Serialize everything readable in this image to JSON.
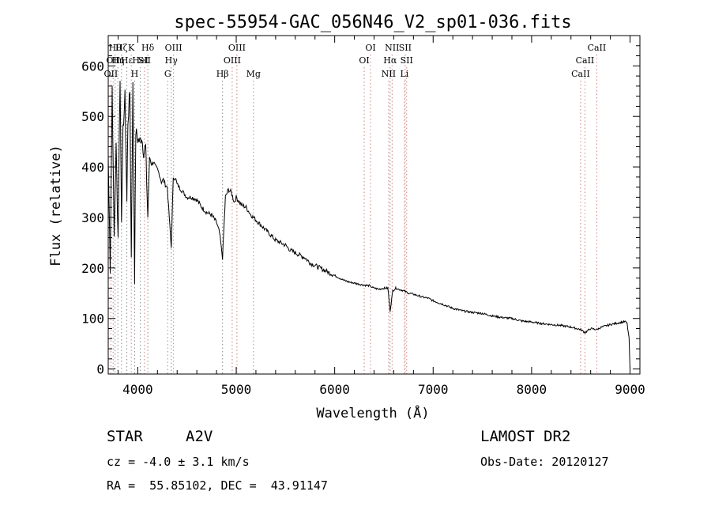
{
  "chart_data": {
    "type": "line",
    "title": "spec-55954-GAC_056N46_V2_sp01-036.fits",
    "xlabel": "Wavelength (Å)",
    "ylabel": "Flux (relative)",
    "xlim": [
      3700,
      9100
    ],
    "ylim": [
      -10,
      660
    ],
    "xticks": [
      4000,
      5000,
      6000,
      7000,
      8000,
      9000
    ],
    "yticks": [
      0,
      100,
      200,
      300,
      400,
      500,
      600
    ],
    "grid": false,
    "series": [
      {
        "x": [
          3700,
          3720,
          3740,
          3760,
          3780,
          3800,
          3820,
          3835,
          3850,
          3870,
          3889,
          3900,
          3920,
          3934,
          3950,
          3968,
          3980,
          4000,
          4020,
          4040,
          4060,
          4080,
          4102,
          4120,
          4140,
          4160,
          4180,
          4200,
          4220,
          4240,
          4260,
          4280,
          4300,
          4320,
          4340,
          4360,
          4380,
          4400,
          4420,
          4440,
          4460,
          4480,
          4500,
          4550,
          4600,
          4650,
          4700,
          4750,
          4800,
          4830,
          4861,
          4890,
          4920,
          4950,
          4980,
          5000,
          5050,
          5100,
          5150,
          5200,
          5250,
          5300,
          5350,
          5400,
          5450,
          5500,
          5550,
          5600,
          5650,
          5700,
          5750,
          5800,
          5850,
          5900,
          5950,
          6000,
          6050,
          6100,
          6150,
          6200,
          6250,
          6300,
          6350,
          6400,
          6450,
          6500,
          6540,
          6563,
          6590,
          6620,
          6650,
          6700,
          6750,
          6800,
          6850,
          6900,
          6950,
          7000,
          7100,
          7200,
          7300,
          7400,
          7500,
          7600,
          7700,
          7800,
          7900,
          8000,
          8100,
          8200,
          8300,
          8400,
          8500,
          8542,
          8600,
          8662,
          8700,
          8750,
          8800,
          8850,
          8900,
          8950,
          8970,
          8990,
          9000
        ],
        "y": [
          420,
          200,
          560,
          260,
          440,
          260,
          580,
          300,
          470,
          540,
          330,
          490,
          550,
          220,
          560,
          180,
          470,
          455,
          450,
          460,
          430,
          440,
          300,
          420,
          405,
          410,
          400,
          395,
          385,
          370,
          375,
          365,
          360,
          300,
          240,
          375,
          380,
          365,
          360,
          355,
          350,
          345,
          340,
          340,
          335,
          320,
          310,
          305,
          290,
          270,
          220,
          340,
          355,
          350,
          330,
          340,
          325,
          320,
          305,
          295,
          285,
          275,
          265,
          255,
          250,
          245,
          235,
          230,
          225,
          220,
          210,
          205,
          200,
          195,
          190,
          185,
          180,
          175,
          172,
          170,
          168,
          166,
          165,
          160,
          158,
          160,
          160,
          115,
          155,
          160,
          158,
          155,
          150,
          148,
          145,
          142,
          140,
          135,
          128,
          120,
          115,
          112,
          110,
          105,
          102,
          100,
          95,
          93,
          90,
          88,
          86,
          83,
          78,
          72,
          80,
          78,
          82,
          85,
          88,
          90,
          92,
          94,
          90,
          60,
          0
        ]
      }
    ],
    "lines": [
      {
        "lambda": 3727,
        "label": "OII",
        "row": 2
      },
      {
        "lambda": 3750,
        "label": "OII",
        "row": 1
      },
      {
        "lambda": 3770,
        "label": "Hθ",
        "row": 0
      },
      {
        "lambda": 3798,
        "label": "Hη",
        "row": 1
      },
      {
        "lambda": 3835,
        "label": "Hζ",
        "row": 0
      },
      {
        "lambda": 3889,
        "label": "Hε",
        "row": 1
      },
      {
        "lambda": 3934,
        "label": "K",
        "row": 0
      },
      {
        "lambda": 3968,
        "label": "H",
        "row": 2
      },
      {
        "lambda": 4026,
        "label": "HeI",
        "row": 1
      },
      {
        "lambda": 4068,
        "label": "SII",
        "row": 1
      },
      {
        "lambda": 4102,
        "label": "Hδ",
        "row": 0
      },
      {
        "lambda": 4304,
        "label": "G",
        "row": 2
      },
      {
        "lambda": 4340,
        "label": "Hγ",
        "row": 1
      },
      {
        "lambda": 4363,
        "label": "OIII",
        "row": 0
      },
      {
        "lambda": 4861,
        "label": "Hβ",
        "row": 2
      },
      {
        "lambda": 4959,
        "label": "OIII",
        "row": 1
      },
      {
        "lambda": 5007,
        "label": "OIII",
        "row": 0
      },
      {
        "lambda": 5175,
        "label": "Mg",
        "row": 2
      },
      {
        "lambda": 6300,
        "label": "OI",
        "row": 1
      },
      {
        "lambda": 6364,
        "label": "OI",
        "row": 0
      },
      {
        "lambda": 6548,
        "label": "NII",
        "row": 2
      },
      {
        "lambda": 6563,
        "label": "Hα",
        "row": 1
      },
      {
        "lambda": 6583,
        "label": "NII",
        "row": 0
      },
      {
        "lambda": 6708,
        "label": "Li",
        "row": 2
      },
      {
        "lambda": 6716,
        "label": "SII",
        "row": 0
      },
      {
        "lambda": 6731,
        "label": "SII",
        "row": 1
      },
      {
        "lambda": 8498,
        "label": "CaII",
        "row": 2
      },
      {
        "lambda": 8542,
        "label": "CaII",
        "row": 1
      },
      {
        "lambda": 8662,
        "label": "CaII",
        "row": 0
      }
    ]
  },
  "info": {
    "class_label": "STAR",
    "subclass": "A2V",
    "survey": "LAMOST DR2",
    "cz": "cz = -4.0 ± 3.1 km/s",
    "obs_date": "Obs-Date: 20120127",
    "coords": "RA =  55.85102, DEC =  43.91147"
  },
  "colors": {
    "line_markers": "#d08080",
    "balmer_markers": "#8a8a8a"
  }
}
